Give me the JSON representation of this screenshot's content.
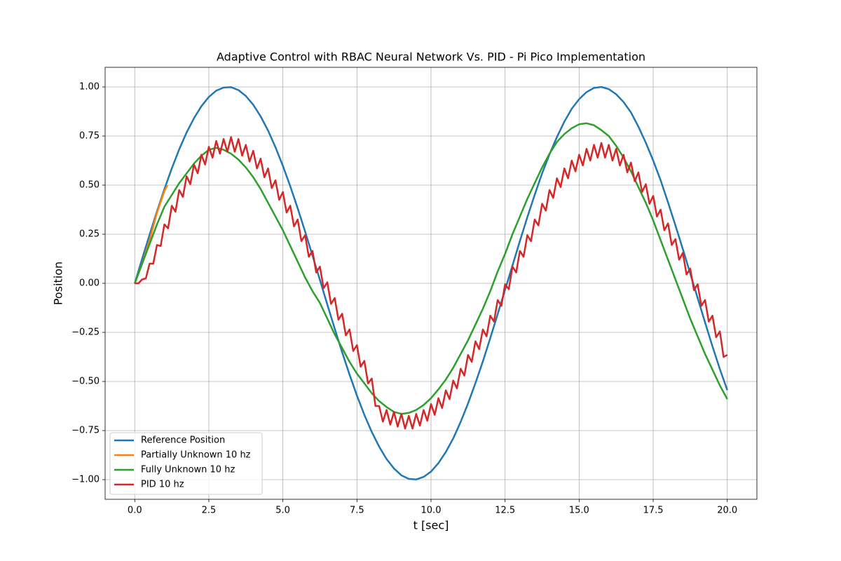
{
  "chart_data": {
    "type": "line",
    "title": "Adaptive Control with RBAC Neural Network Vs. PID - Pi Pico Implementation",
    "xlabel": "t [sec]",
    "ylabel": "Position",
    "xlim": [
      -1,
      21
    ],
    "ylim": [
      -1.1,
      1.1
    ],
    "xticks": [
      {
        "value": 0,
        "label": "0.0"
      },
      {
        "value": 2.5,
        "label": "2.5"
      },
      {
        "value": 5,
        "label": "5.0"
      },
      {
        "value": 7.5,
        "label": "7.5"
      },
      {
        "value": 10,
        "label": "10.0"
      },
      {
        "value": 12.5,
        "label": "12.5"
      },
      {
        "value": 15,
        "label": "15.0"
      },
      {
        "value": 17.5,
        "label": "17.5"
      },
      {
        "value": 20,
        "label": "20.0"
      }
    ],
    "yticks": [
      {
        "value": -1,
        "label": "−1.00"
      },
      {
        "value": -0.75,
        "label": "−0.75"
      },
      {
        "value": -0.5,
        "label": "−0.50"
      },
      {
        "value": -0.25,
        "label": "−0.25"
      },
      {
        "value": 0,
        "label": "0.00"
      },
      {
        "value": 0.25,
        "label": "0.25"
      },
      {
        "value": 0.5,
        "label": "0.50"
      },
      {
        "value": 0.75,
        "label": "0.75"
      },
      {
        "value": 1,
        "label": "1.00"
      }
    ],
    "grid": true,
    "legend": "lower left",
    "x": [
      0,
      0.25,
      0.5,
      0.75,
      1,
      1.25,
      1.5,
      1.75,
      2,
      2.25,
      2.5,
      2.75,
      3,
      3.25,
      3.5,
      3.75,
      4,
      4.25,
      4.5,
      4.75,
      5,
      5.25,
      5.5,
      5.75,
      6,
      6.25,
      6.5,
      6.75,
      7,
      7.25,
      7.5,
      7.75,
      8,
      8.25,
      8.5,
      8.75,
      9,
      9.25,
      9.5,
      9.75,
      10,
      10.25,
      10.5,
      10.75,
      11,
      11.25,
      11.5,
      11.75,
      12,
      12.25,
      12.5,
      12.75,
      13,
      13.25,
      13.5,
      13.75,
      14,
      14.25,
      14.5,
      14.75,
      15,
      15.25,
      15.5,
      15.75,
      16,
      16.25,
      16.5,
      16.75,
      17,
      17.25,
      17.5,
      17.75,
      18,
      18.25,
      18.5,
      18.75,
      19,
      19.25,
      19.5,
      19.75,
      20
    ],
    "series": [
      {
        "name": "Reference Position",
        "color": "#1f77b4",
        "values": [
          0,
          0.125,
          0.247,
          0.366,
          0.479,
          0.585,
          0.682,
          0.768,
          0.841,
          0.902,
          0.949,
          0.981,
          0.997,
          0.999,
          0.984,
          0.954,
          0.909,
          0.85,
          0.778,
          0.693,
          0.598,
          0.494,
          0.382,
          0.264,
          0.141,
          0.017,
          -0.108,
          -0.231,
          -0.351,
          -0.465,
          -0.572,
          -0.67,
          -0.757,
          -0.832,
          -0.895,
          -0.943,
          -0.978,
          -0.996,
          -0.999,
          -0.986,
          -0.959,
          -0.916,
          -0.859,
          -0.79,
          -0.706,
          -0.612,
          -0.508,
          -0.398,
          -0.279,
          -0.157,
          -0.033,
          0.091,
          0.215,
          0.336,
          0.451,
          0.56,
          0.657,
          0.745,
          0.823,
          0.889,
          0.938,
          0.974,
          0.995,
          1,
          0.989,
          0.963,
          0.923,
          0.87,
          0.798,
          0.716,
          0.625,
          0.525,
          0.412,
          0.295,
          0.174,
          0.05,
          -0.075,
          -0.199,
          -0.321,
          -0.437,
          -0.544
        ]
      },
      {
        "name": "Partially Unknown 10 hz",
        "color": "#ff7f0e",
        "x": [
          0,
          0.25,
          0.5,
          0.75,
          1,
          1.1
        ],
        "values": [
          0,
          0.1,
          0.22,
          0.36,
          0.47,
          0.5
        ]
      },
      {
        "name": "Fully Unknown 10 hz",
        "color": "#2ca02c",
        "values": [
          0,
          0.1,
          0.2,
          0.3,
          0.39,
          0.45,
          0.51,
          0.56,
          0.61,
          0.65,
          0.68,
          0.69,
          0.68,
          0.66,
          0.63,
          0.59,
          0.54,
          0.48,
          0.41,
          0.34,
          0.27,
          0.19,
          0.11,
          0.03,
          -0.04,
          -0.1,
          -0.18,
          -0.26,
          -0.33,
          -0.4,
          -0.46,
          -0.51,
          -0.56,
          -0.6,
          -0.63,
          -0.655,
          -0.665,
          -0.66,
          -0.645,
          -0.62,
          -0.585,
          -0.54,
          -0.49,
          -0.43,
          -0.36,
          -0.29,
          -0.21,
          -0.13,
          -0.04,
          0.06,
          0.15,
          0.25,
          0.34,
          0.43,
          0.51,
          0.59,
          0.66,
          0.72,
          0.76,
          0.79,
          0.81,
          0.815,
          0.805,
          0.78,
          0.75,
          0.7,
          0.64,
          0.57,
          0.49,
          0.41,
          0.32,
          0.22,
          0.12,
          0.02,
          -0.08,
          -0.18,
          -0.27,
          -0.36,
          -0.44,
          -0.52,
          -0.59
        ]
      },
      {
        "name": "PID 10 hz",
        "color": "#d62728",
        "x": [
          0,
          0.125,
          0.25,
          0.375,
          0.5,
          0.625,
          0.75,
          0.875,
          1,
          1.125,
          1.25,
          1.375,
          1.5,
          1.625,
          1.75,
          1.875,
          2,
          2.125,
          2.25,
          2.375,
          2.5,
          2.625,
          2.75,
          2.875,
          3,
          3.125,
          3.25,
          3.375,
          3.5,
          3.625,
          3.75,
          3.875,
          4,
          4.125,
          4.25,
          4.375,
          4.5,
          4.625,
          4.75,
          4.875,
          5,
          5.125,
          5.25,
          5.375,
          5.5,
          5.625,
          5.75,
          5.875,
          6,
          6.125,
          6.25,
          6.375,
          6.5,
          6.625,
          6.75,
          6.875,
          7,
          7.125,
          7.25,
          7.375,
          7.5,
          7.625,
          7.75,
          7.875,
          8,
          8.125,
          8.25,
          8.375,
          8.5,
          8.625,
          8.75,
          8.875,
          9,
          9.125,
          9.25,
          9.375,
          9.5,
          9.625,
          9.75,
          9.875,
          10,
          10.125,
          10.25,
          10.375,
          10.5,
          10.625,
          10.75,
          10.875,
          11,
          11.125,
          11.25,
          11.375,
          11.5,
          11.625,
          11.75,
          11.875,
          12,
          12.125,
          12.25,
          12.375,
          12.5,
          12.625,
          12.75,
          12.875,
          13,
          13.125,
          13.25,
          13.375,
          13.5,
          13.625,
          13.75,
          13.875,
          14,
          14.125,
          14.25,
          14.375,
          14.5,
          14.625,
          14.75,
          14.875,
          15,
          15.125,
          15.25,
          15.375,
          15.5,
          15.625,
          15.75,
          15.875,
          16,
          16.125,
          16.25,
          16.375,
          16.5,
          16.625,
          16.75,
          16.875,
          17,
          17.125,
          17.25,
          17.375,
          17.5,
          17.625,
          17.75,
          17.875,
          18,
          18.125,
          18.25,
          18.375,
          18.5,
          18.625,
          18.75,
          18.875,
          19,
          19.125,
          19.25,
          19.375,
          19.5,
          19.625,
          19.75,
          19.875,
          20
        ],
        "values": [
          0,
          0,
          0.02,
          0.025,
          0.1,
          0.1,
          0.195,
          0.19,
          0.3,
          0.28,
          0.395,
          0.365,
          0.475,
          0.44,
          0.545,
          0.505,
          0.605,
          0.56,
          0.655,
          0.605,
          0.695,
          0.64,
          0.725,
          0.66,
          0.735,
          0.67,
          0.745,
          0.67,
          0.735,
          0.65,
          0.705,
          0.62,
          0.675,
          0.585,
          0.635,
          0.54,
          0.585,
          0.485,
          0.525,
          0.425,
          0.465,
          0.36,
          0.395,
          0.29,
          0.325,
          0.215,
          0.245,
          0.135,
          0.165,
          0.055,
          0.085,
          -0.025,
          0.005,
          -0.105,
          -0.075,
          -0.185,
          -0.155,
          -0.265,
          -0.235,
          -0.345,
          -0.315,
          -0.425,
          -0.395,
          -0.51,
          -0.485,
          -0.625,
          -0.625,
          -0.705,
          -0.645,
          -0.72,
          -0.655,
          -0.73,
          -0.665,
          -0.74,
          -0.675,
          -0.74,
          -0.665,
          -0.725,
          -0.645,
          -0.7,
          -0.615,
          -0.67,
          -0.585,
          -0.635,
          -0.545,
          -0.59,
          -0.495,
          -0.535,
          -0.435,
          -0.47,
          -0.365,
          -0.4,
          -0.295,
          -0.335,
          -0.235,
          -0.27,
          -0.165,
          -0.195,
          -0.085,
          -0.115,
          -0.005,
          -0.03,
          0.085,
          0.055,
          0.165,
          0.135,
          0.245,
          0.215,
          0.325,
          0.295,
          0.405,
          0.37,
          0.475,
          0.435,
          0.535,
          0.49,
          0.585,
          0.535,
          0.625,
          0.57,
          0.655,
          0.6,
          0.685,
          0.625,
          0.705,
          0.64,
          0.715,
          0.64,
          0.705,
          0.625,
          0.685,
          0.6,
          0.655,
          0.565,
          0.615,
          0.52,
          0.565,
          0.465,
          0.505,
          0.405,
          0.445,
          0.34,
          0.375,
          0.27,
          0.305,
          0.195,
          0.225,
          0.12,
          0.155,
          0.045,
          0.075,
          -0.035,
          -0.005,
          -0.115,
          -0.085,
          -0.195,
          -0.165,
          -0.275,
          -0.245,
          -0.375,
          -0.365
        ]
      }
    ]
  }
}
